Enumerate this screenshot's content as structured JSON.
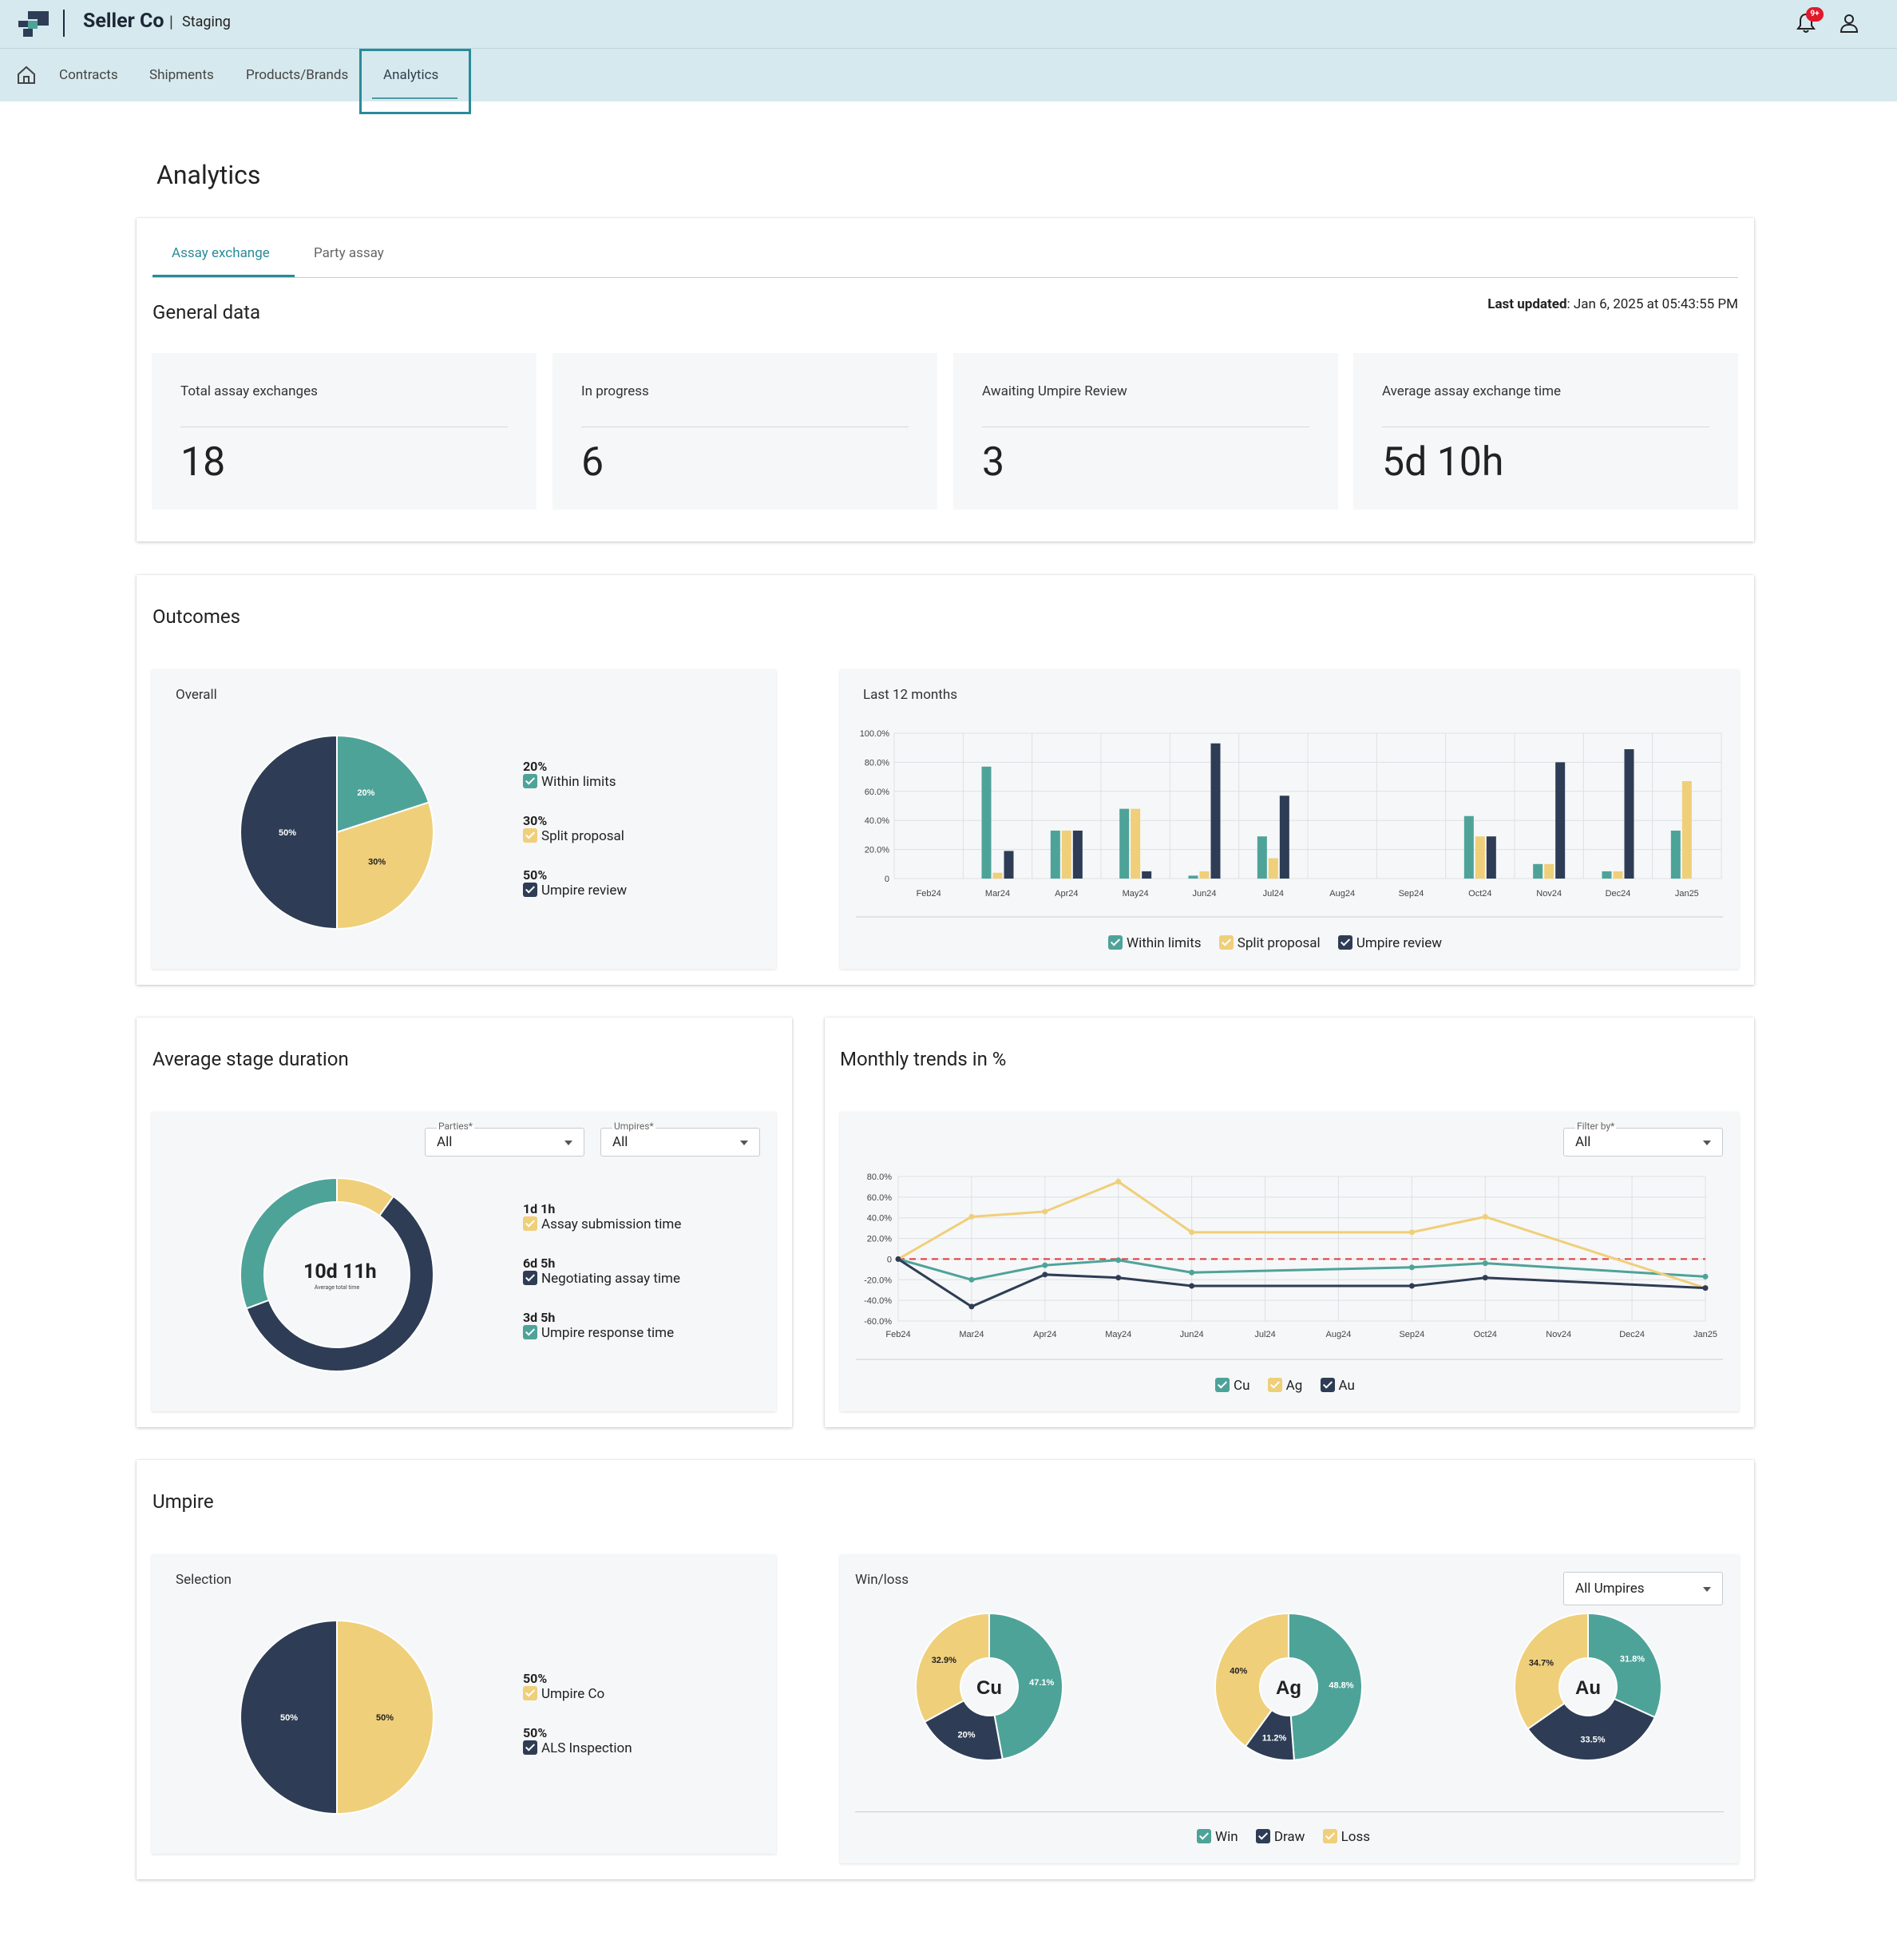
{
  "header": {
    "brand": "Seller Co",
    "pipe": "|",
    "environment": "Staging",
    "notifications_badge": "9+"
  },
  "nav": {
    "items": [
      "Contracts",
      "Shipments",
      "Products/Brands",
      "Analytics"
    ],
    "active": "Analytics"
  },
  "page": {
    "title": "Analytics"
  },
  "tabs": {
    "items": [
      "Assay exchange",
      "Party assay"
    ],
    "active": "Assay exchange"
  },
  "general": {
    "title": "General data",
    "last_updated_label": "Last updated",
    "last_updated_value": ": Jan 6, 2025 at 05:43:55 PM",
    "stats": [
      {
        "label": "Total assay exchanges",
        "value": "18"
      },
      {
        "label": "In progress",
        "value": "6"
      },
      {
        "label": "Awaiting Umpire Review",
        "value": "3"
      },
      {
        "label": "Average assay exchange time",
        "value": "5d 10h"
      }
    ]
  },
  "outcomes": {
    "title": "Outcomes",
    "overall": {
      "title": "Overall",
      "legend": [
        {
          "pct": "20%",
          "label": "Within limits",
          "color": "#4ea399"
        },
        {
          "pct": "30%",
          "label": "Split proposal",
          "color": "#efcf7a"
        },
        {
          "pct": "50%",
          "label": "Umpire review",
          "color": "#2e3d55"
        }
      ]
    },
    "last12": {
      "title": "Last 12 months",
      "legend": [
        "Within limits",
        "Split proposal",
        "Umpire review"
      ]
    }
  },
  "avg_stage": {
    "title": "Average stage duration",
    "parties_caption": "Parties*",
    "parties_value": "All",
    "umpires_caption": "Umpires*",
    "umpires_value": "All",
    "total": "10d 11h",
    "total_caption": "Average total time",
    "legend": [
      {
        "value": "1d 1h",
        "label": "Assay submission time",
        "color": "#efcf7a"
      },
      {
        "value": "6d 5h",
        "label": "Negotiating assay time",
        "color": "#2e3d55"
      },
      {
        "value": "3d 5h",
        "label": "Umpire response time",
        "color": "#4ea399"
      }
    ]
  },
  "monthly": {
    "title": "Monthly trends in %",
    "filter_caption": "Filter by*",
    "filter_value": "All",
    "legend": [
      "Cu",
      "Ag",
      "Au"
    ]
  },
  "umpire": {
    "title": "Umpire",
    "selection": {
      "title": "Selection",
      "legend": [
        {
          "pct": "50%",
          "label": "Umpire Co",
          "color": "#efcf7a"
        },
        {
          "pct": "50%",
          "label": "ALS Inspection",
          "color": "#2e3d55"
        }
      ]
    },
    "winloss": {
      "title": "Win/loss",
      "select_value": "All Umpires",
      "legend": [
        "Win",
        "Draw",
        "Loss"
      ]
    }
  },
  "colors": {
    "teal": "#4ea399",
    "yellow": "#efcf7a",
    "navy": "#2e3d55",
    "accent": "#2a8b98"
  },
  "chart_data": [
    {
      "type": "pie",
      "title": "Overall",
      "categories": [
        "Within limits",
        "Split proposal",
        "Umpire review"
      ],
      "values": [
        20,
        30,
        50
      ],
      "labels": [
        "20%",
        "30%",
        "50%"
      ],
      "colors": [
        "#4ea399",
        "#efcf7a",
        "#2e3d55"
      ]
    },
    {
      "type": "bar",
      "title": "Last 12 months",
      "categories": [
        "Feb24",
        "Mar24",
        "Apr24",
        "May24",
        "Jun24",
        "Jul24",
        "Aug24",
        "Sep24",
        "Oct24",
        "Nov24",
        "Dec24",
        "Jan25"
      ],
      "ylim": [
        0,
        100
      ],
      "yticks": [
        "100.0%",
        "80.0%",
        "60.0%",
        "40.0%",
        "20.0%",
        "0"
      ],
      "series": [
        {
          "name": "Within limits",
          "color": "#4ea399",
          "values": [
            0,
            77,
            33,
            48,
            2,
            29,
            0,
            0,
            43,
            10,
            5,
            33
          ]
        },
        {
          "name": "Split proposal",
          "color": "#efcf7a",
          "values": [
            0,
            4,
            33,
            48,
            5,
            14,
            0,
            0,
            29,
            10,
            5,
            67
          ]
        },
        {
          "name": "Umpire review",
          "color": "#2e3d55",
          "values": [
            0,
            19,
            33,
            5,
            93,
            57,
            0,
            0,
            29,
            80,
            89,
            0
          ]
        }
      ]
    },
    {
      "type": "pie",
      "title": "Average stage duration",
      "categories": [
        "Assay submission time",
        "Negotiating assay time",
        "Umpire response time"
      ],
      "values": [
        1.04,
        6.21,
        3.21
      ],
      "colors": [
        "#efcf7a",
        "#2e3d55",
        "#4ea399"
      ]
    },
    {
      "type": "line",
      "title": "Monthly trends in %",
      "categories": [
        "Feb24",
        "Mar24",
        "Apr24",
        "May24",
        "Jun24",
        "Jul24",
        "Aug24",
        "Sep24",
        "Oct24",
        "Nov24",
        "Dec24",
        "Jan25"
      ],
      "ylim": [
        -60,
        80
      ],
      "yticks": [
        "80.0%",
        "60.0%",
        "40.0%",
        "20.0%",
        "0",
        "-20.0%",
        "-40.0%",
        "-60.0%"
      ],
      "series": [
        {
          "name": "Cu",
          "color": "#4ea399",
          "points": [
            [
              0,
              0
            ],
            [
              1,
              -20
            ],
            [
              2,
              -6
            ],
            [
              3,
              -1
            ],
            [
              4,
              -13
            ],
            [
              7,
              -8
            ],
            [
              8,
              -4
            ],
            [
              11,
              -17
            ]
          ]
        },
        {
          "name": "Ag",
          "color": "#efcf7a",
          "points": [
            [
              0,
              0
            ],
            [
              1,
              41
            ],
            [
              2,
              46
            ],
            [
              3,
              75
            ],
            [
              4,
              26
            ],
            [
              7,
              26
            ],
            [
              8,
              41
            ],
            [
              11,
              -28
            ]
          ]
        },
        {
          "name": "Au",
          "color": "#2e3d55",
          "points": [
            [
              0,
              0
            ],
            [
              1,
              -46
            ],
            [
              2,
              -15
            ],
            [
              3,
              -18
            ],
            [
              4,
              -26
            ],
            [
              7,
              -26
            ],
            [
              8,
              -18
            ],
            [
              11,
              -28
            ]
          ]
        }
      ]
    },
    {
      "type": "pie",
      "title": "Selection",
      "categories": [
        "Umpire Co",
        "ALS Inspection"
      ],
      "values": [
        50,
        50
      ],
      "labels": [
        "50%",
        "50%"
      ],
      "colors": [
        "#efcf7a",
        "#2e3d55"
      ]
    },
    {
      "type": "pie",
      "title": "Win/loss",
      "charts": [
        {
          "center": "Cu",
          "categories": [
            "Win",
            "Draw",
            "Loss"
          ],
          "values": [
            47.1,
            20,
            32.9
          ],
          "labels": [
            "47.1%",
            "20%",
            "32.9%"
          ]
        },
        {
          "center": "Ag",
          "categories": [
            "Win",
            "Draw",
            "Loss"
          ],
          "values": [
            48.8,
            11.2,
            40
          ],
          "labels": [
            "48.8%",
            "11.2%",
            "40%"
          ]
        },
        {
          "center": "Au",
          "categories": [
            "Win",
            "Draw",
            "Loss"
          ],
          "values": [
            31.8,
            33.5,
            34.7
          ],
          "labels": [
            "31.8%",
            "33.5%",
            "34.7%"
          ]
        }
      ],
      "colors": [
        "#4ea399",
        "#2e3d55",
        "#efcf7a"
      ]
    }
  ]
}
